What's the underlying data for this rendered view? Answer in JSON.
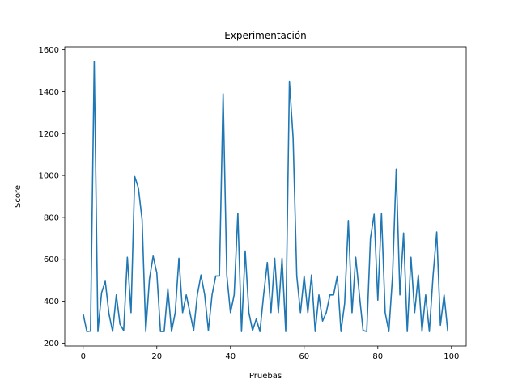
{
  "chart_data": {
    "type": "line",
    "title": "Experimentación",
    "xlabel": "Pruebas",
    "ylabel": "Score",
    "xlim": [
      -5,
      104
    ],
    "ylim": [
      186,
      1614
    ],
    "xticks": [
      0,
      20,
      40,
      60,
      80,
      100
    ],
    "xtick_labels": [
      "0",
      "20",
      "40",
      "60",
      "80",
      "100"
    ],
    "yticks": [
      200,
      400,
      600,
      800,
      1000,
      1200,
      1400,
      1600
    ],
    "ytick_labels": [
      "200",
      "400",
      "600",
      "800",
      "1000",
      "1200",
      "1400",
      "1600"
    ],
    "grid": false,
    "color": "#1f77b4",
    "series": [
      {
        "values": [
          340,
          255,
          257,
          1545,
          255,
          440,
          495,
          340,
          255,
          430,
          290,
          260,
          610,
          345,
          995,
          940,
          790,
          255,
          505,
          615,
          535,
          255,
          255,
          460,
          255,
          345,
          605,
          345,
          430,
          345,
          260,
          430,
          525,
          430,
          260,
          430,
          520,
          520,
          1390,
          525,
          345,
          430,
          820,
          255,
          640,
          345,
          260,
          315,
          255,
          430,
          585,
          345,
          605,
          345,
          605,
          255,
          1450,
          1180,
          520,
          345,
          520,
          345,
          525,
          255,
          430,
          305,
          345,
          430,
          430,
          520,
          255,
          390,
          785,
          345,
          610,
          430,
          260,
          255,
          700,
          815,
          405,
          820,
          345,
          255,
          520,
          1030,
          430,
          725,
          255,
          610,
          345,
          525,
          255,
          430,
          255,
          520,
          730,
          285,
          430,
          255
        ]
      }
    ]
  }
}
